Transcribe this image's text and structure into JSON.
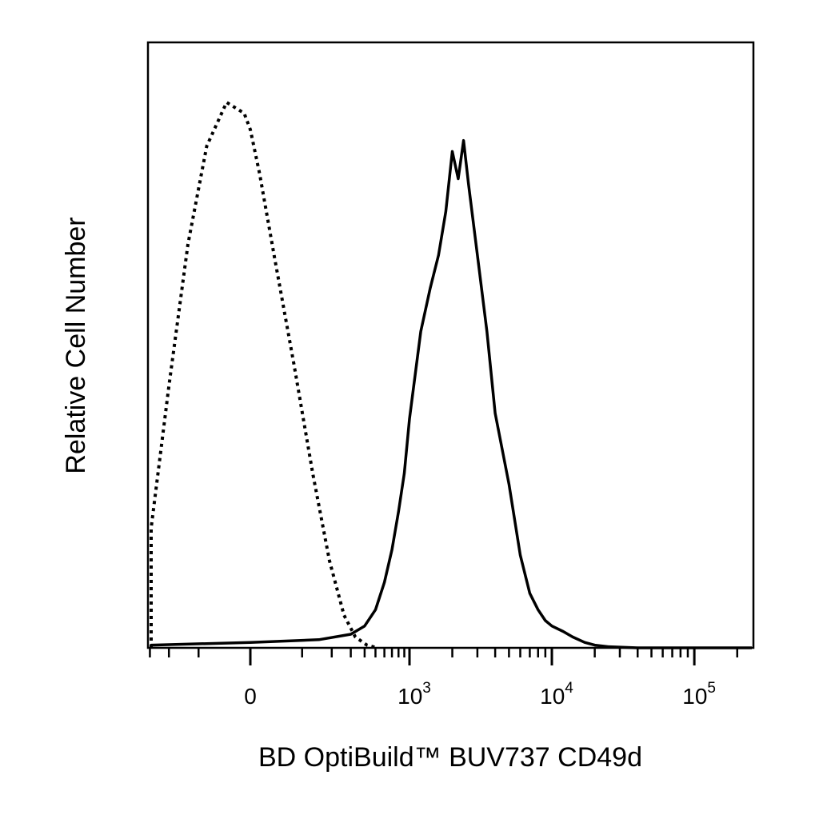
{
  "chart_data": {
    "type": "line",
    "title": "",
    "xlabel": "BD OptiBuild™ BUV737 CD49d",
    "ylabel": "Relative Cell Number",
    "x_scale": "biexponential",
    "xlim": [
      -500,
      200000
    ],
    "ylim": [
      0,
      100
    ],
    "grid": false,
    "legend": "none",
    "x_ticks": [
      {
        "value": 0,
        "base": "0",
        "exp": ""
      },
      {
        "value": 1000,
        "base": "10",
        "exp": "3"
      },
      {
        "value": 10000,
        "base": "10",
        "exp": "4"
      },
      {
        "value": 100000,
        "base": "10",
        "exp": "5"
      }
    ],
    "series": [
      {
        "style": "dotted",
        "x": [
          -560,
          -420,
          -300,
          -200,
          -130,
          -80,
          -40,
          -10,
          0,
          15,
          40,
          80,
          130,
          190,
          260,
          330,
          420,
          520
        ],
        "y": [
          0,
          4,
          22,
          48,
          74,
          92,
          100,
          98,
          95,
          87,
          72,
          52,
          32,
          16,
          6,
          2,
          0.5,
          0
        ]
      },
      {
        "style": "solid",
        "x": [
          -500,
          -300,
          0,
          150,
          300,
          400,
          500,
          600,
          700,
          800,
          900,
          1000,
          1200,
          1400,
          1600,
          1800,
          2000,
          2200,
          2400,
          2600,
          3000,
          3500,
          4000,
          5000,
          6000,
          7000,
          8000,
          9000,
          10000,
          12000,
          14000,
          17000,
          20000,
          25000,
          40000,
          100000,
          200000
        ],
        "y": [
          0,
          0.5,
          1,
          1.5,
          2.5,
          4,
          7,
          12,
          18,
          25,
          32,
          42,
          58,
          66,
          72,
          80,
          91,
          86,
          93,
          85,
          72,
          58,
          43,
          30,
          17,
          10,
          7,
          5,
          4,
          3,
          2,
          1,
          0.5,
          0.2,
          0,
          0,
          0
        ]
      }
    ]
  }
}
